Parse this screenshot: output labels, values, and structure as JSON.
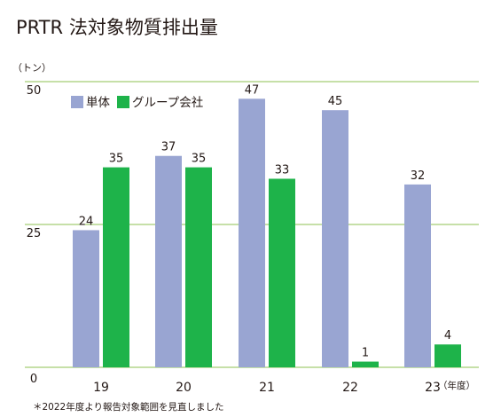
{
  "chart_data": {
    "type": "bar",
    "title": "PRTR 法対象物質排出量",
    "unit_label": "（トン）",
    "categories": [
      "19",
      "20",
      "21",
      "22",
      "23"
    ],
    "x_suffix": "（年度）",
    "series": [
      {
        "name": "単体",
        "values": [
          24,
          37,
          47,
          45,
          32
        ],
        "color": "#99a5d2"
      },
      {
        "name": "グループ会社",
        "values": [
          35,
          35,
          33,
          1,
          4
        ],
        "color": "#1eb34a"
      }
    ],
    "ylim": [
      0,
      50
    ],
    "yticks": [
      0,
      25,
      50
    ],
    "grid": true,
    "grid_color": "#8cc152",
    "legend_position": "top-left",
    "footnote": "＊2022年度より報告対象範囲を見直しました"
  }
}
